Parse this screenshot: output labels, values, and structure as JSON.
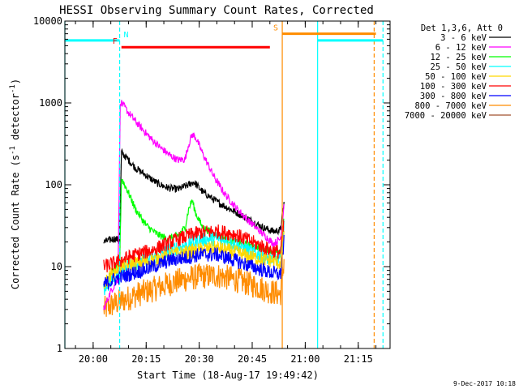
{
  "chart_data": {
    "type": "line",
    "title": "HESSI Observing Summary Count Rates, Corrected",
    "xlabel": "Start Time (18-Aug-17 19:49:42)",
    "ylabel": "Corrected Count Rate (s⁻¹ detector⁻¹)",
    "ylabel_parts": {
      "main": "Corrected Count Rate (s",
      "sup1": "-1",
      "mid": " detector",
      "sup2": "-1",
      "end": ")"
    },
    "xscale": "time",
    "yscale": "log",
    "xlim": [
      "19:52",
      "21:24"
    ],
    "ylim": [
      1,
      10000
    ],
    "x_ticks": [
      "20:00",
      "20:15",
      "20:30",
      "20:45",
      "21:00",
      "21:15"
    ],
    "y_ticks": [
      {
        "value": 1,
        "label": "1"
      },
      {
        "value": 10,
        "label": "10"
      },
      {
        "value": 100,
        "label": "100"
      },
      {
        "value": 1000,
        "label": "1000"
      },
      {
        "value": 10000,
        "label": "10000"
      }
    ],
    "legend_header": "Det 1,3,6, Att 0",
    "legend_position": "right",
    "series": [
      {
        "name": "3 - 6 keV",
        "color": "#000000",
        "width": 1.2,
        "points": [
          [
            "20:03",
            20
          ],
          [
            "20:06",
            22
          ],
          [
            "20:07.5",
            21
          ],
          [
            "20:08",
            250
          ],
          [
            "20:10",
            200
          ],
          [
            "20:12",
            160
          ],
          [
            "20:15",
            130
          ],
          [
            "20:18",
            105
          ],
          [
            "20:21",
            92
          ],
          [
            "20:24",
            88
          ],
          [
            "20:27",
            100
          ],
          [
            "20:28.5",
            108
          ],
          [
            "20:31",
            82
          ],
          [
            "20:35",
            62
          ],
          [
            "20:40",
            47
          ],
          [
            "20:45",
            36
          ],
          [
            "20:48",
            30
          ],
          [
            "20:51",
            27
          ],
          [
            "20:53",
            28
          ],
          [
            "20:54",
            60
          ]
        ]
      },
      {
        "name": "6 - 12 keV",
        "color": "#ff00ff",
        "width": 1.2,
        "points": [
          [
            "20:03",
            3
          ],
          [
            "20:05",
            5
          ],
          [
            "20:07",
            7
          ],
          [
            "20:07.7",
            1050
          ],
          [
            "20:10",
            760
          ],
          [
            "20:13",
            530
          ],
          [
            "20:16",
            380
          ],
          [
            "20:19",
            285
          ],
          [
            "20:22",
            225
          ],
          [
            "20:24",
            200
          ],
          [
            "20:26",
            205
          ],
          [
            "20:27",
            310
          ],
          [
            "20:28",
            410
          ],
          [
            "20:29",
            380
          ],
          [
            "20:31",
            240
          ],
          [
            "20:34",
            130
          ],
          [
            "20:37",
            80
          ],
          [
            "20:40",
            55
          ],
          [
            "20:43",
            40
          ],
          [
            "20:46",
            30
          ],
          [
            "20:49",
            23
          ],
          [
            "20:51",
            19
          ],
          [
            "20:53",
            22
          ],
          [
            "20:54",
            58
          ]
        ]
      },
      {
        "name": "12 - 25 keV",
        "color": "#00ff00",
        "width": 1.2,
        "points": [
          [
            "20:03",
            6
          ],
          [
            "20:06",
            9
          ],
          [
            "20:07.5",
            10
          ],
          [
            "20:08",
            120
          ],
          [
            "20:10",
            80
          ],
          [
            "20:12",
            50
          ],
          [
            "20:15",
            32
          ],
          [
            "20:18",
            25
          ],
          [
            "20:21",
            22
          ],
          [
            "20:24",
            24
          ],
          [
            "20:26",
            30
          ],
          [
            "20:27",
            50
          ],
          [
            "20:28",
            65
          ],
          [
            "20:29",
            45
          ],
          [
            "20:31",
            30
          ],
          [
            "20:35",
            24
          ],
          [
            "20:40",
            20
          ],
          [
            "20:45",
            18
          ],
          [
            "20:50",
            16
          ],
          [
            "20:53",
            14
          ],
          [
            "20:54",
            40
          ]
        ]
      },
      {
        "name": "25 - 50 keV",
        "color": "#00ffff",
        "width": 1.2,
        "points": [
          [
            "20:03",
            5
          ],
          [
            "20:06",
            8
          ],
          [
            "20:08",
            10
          ],
          [
            "20:12",
            11
          ],
          [
            "20:17",
            13
          ],
          [
            "20:22",
            16
          ],
          [
            "20:27",
            19
          ],
          [
            "20:30",
            21
          ],
          [
            "20:35",
            22
          ],
          [
            "20:40",
            19
          ],
          [
            "20:45",
            15
          ],
          [
            "20:50",
            13
          ],
          [
            "20:53",
            12
          ],
          [
            "20:54",
            30
          ]
        ]
      },
      {
        "name": "50 - 100 keV",
        "color": "#ffd700",
        "width": 1.2,
        "points": [
          [
            "20:03",
            6
          ],
          [
            "20:06",
            9
          ],
          [
            "20:08",
            10
          ],
          [
            "20:12",
            11
          ],
          [
            "20:17",
            12
          ],
          [
            "20:22",
            14
          ],
          [
            "20:27",
            15
          ],
          [
            "20:30",
            16
          ],
          [
            "20:35",
            17
          ],
          [
            "20:40",
            15
          ],
          [
            "20:45",
            13
          ],
          [
            "20:50",
            12
          ],
          [
            "20:53",
            11
          ],
          [
            "20:54",
            28
          ]
        ]
      },
      {
        "name": "100 - 300 keV",
        "color": "#ff0000",
        "width": 1.2,
        "points": [
          [
            "20:03",
            10
          ],
          [
            "20:06",
            11
          ],
          [
            "20:08",
            12
          ],
          [
            "20:12",
            14
          ],
          [
            "20:17",
            16
          ],
          [
            "20:22",
            20
          ],
          [
            "20:27",
            24
          ],
          [
            "20:30",
            26
          ],
          [
            "20:35",
            27
          ],
          [
            "20:40",
            25
          ],
          [
            "20:45",
            20
          ],
          [
            "20:50",
            16
          ],
          [
            "20:53",
            15
          ],
          [
            "20:54",
            35
          ]
        ]
      },
      {
        "name": "300 - 800 keV",
        "color": "#0000ff",
        "width": 1.2,
        "points": [
          [
            "20:03",
            6
          ],
          [
            "20:06",
            7
          ],
          [
            "20:08",
            7.5
          ],
          [
            "20:12",
            8.5
          ],
          [
            "20:17",
            10
          ],
          [
            "20:22",
            12
          ],
          [
            "20:27",
            13
          ],
          [
            "20:30",
            14
          ],
          [
            "20:35",
            14
          ],
          [
            "20:40",
            12
          ],
          [
            "20:45",
            10
          ],
          [
            "20:50",
            8.5
          ],
          [
            "20:53",
            8
          ],
          [
            "20:54",
            20
          ]
        ]
      },
      {
        "name": "800 - 7000 keV",
        "color": "#ff8c00",
        "width": 1.2,
        "points": [
          [
            "20:03",
            3
          ],
          [
            "20:06",
            3.5
          ],
          [
            "20:08",
            3.8
          ],
          [
            "20:12",
            4.5
          ],
          [
            "20:17",
            5.3
          ],
          [
            "20:22",
            6.3
          ],
          [
            "20:27",
            7.2
          ],
          [
            "20:30",
            7.6
          ],
          [
            "20:35",
            7.8
          ],
          [
            "20:40",
            7
          ],
          [
            "20:45",
            6
          ],
          [
            "20:50",
            5
          ],
          [
            "20:53",
            4.6
          ],
          [
            "20:54",
            12
          ]
        ]
      },
      {
        "name": "7000 - 20000 keV",
        "color": "#a0522d",
        "width": 1.2,
        "points": []
      }
    ],
    "verticals": [
      {
        "x": "19:52",
        "color": "#00ffff",
        "dash": false
      },
      {
        "x": "20:07.5",
        "color": "#00ffff",
        "dash": true
      },
      {
        "x": "20:53.5",
        "color": "#ff8c00",
        "dash": false
      },
      {
        "x": "21:03.5",
        "color": "#00ffff",
        "dash": false
      },
      {
        "x": "21:19.5",
        "color": "#ff8c00",
        "dash": true
      },
      {
        "x": "21:22",
        "color": "#00ffff",
        "dash": true
      }
    ],
    "flag_bars": [
      {
        "label": "N",
        "x0": "19:52",
        "x1": "20:07.5",
        "y": 5800,
        "color": "#00ffff",
        "label_side": "right",
        "label_at": "20:07.5"
      },
      {
        "label": "",
        "x0": "21:03.5",
        "x1": "21:22",
        "y": 5800,
        "color": "#00ffff"
      },
      {
        "label": "F",
        "x0": "20:08",
        "x1": "20:50",
        "y": 4800,
        "color": "#ff0000",
        "label_side": "left",
        "label_at": "20:08"
      },
      {
        "label": "S",
        "x0": "20:53.5",
        "x1": "21:20",
        "y": 7000,
        "color": "#ff8c00",
        "label_side": "left",
        "label_at": "20:53.5"
      }
    ],
    "footnote": "9-Dec-2017 10:18"
  }
}
